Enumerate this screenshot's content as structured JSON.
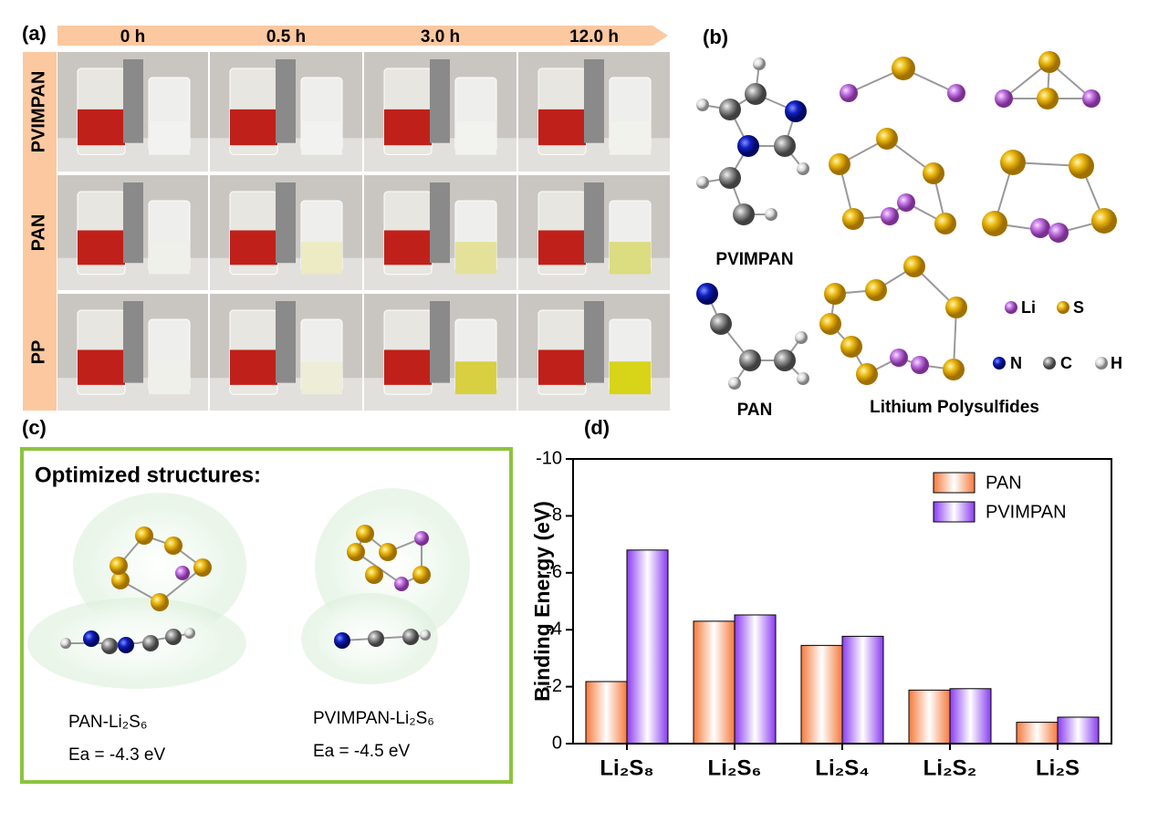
{
  "panel_a": {
    "label": "(a)",
    "times": [
      "0 h",
      "0.5 h",
      "3.0 h",
      "12.0 h"
    ],
    "rows": [
      "PVIMPAN",
      "PAN",
      "PP"
    ]
  },
  "panel_b": {
    "label": "(b)",
    "molecules": [
      "PVIMPAN",
      "PAN",
      "Lithium Polysulfides"
    ],
    "legend": [
      "Li",
      "S",
      "N",
      "C",
      "H"
    ]
  },
  "panel_c": {
    "label": "(c)",
    "title": "Optimized structures:",
    "structures": [
      {
        "name": "PAN-Li₂S₆",
        "energy": "Ea = -4.3 eV"
      },
      {
        "name": "PVIMPAN-Li₂S₆",
        "energy": "Ea = -4.5 eV"
      }
    ]
  },
  "chart_data": {
    "type": "bar",
    "label": "(d)",
    "y_label": "Binding Energy (eV)",
    "categories": [
      "Li₂S₈",
      "Li₂S₆",
      "Li₂S₄",
      "Li₂S₂",
      "Li₂S"
    ],
    "series": [
      {
        "name": "PAN",
        "color": "#f47a3c",
        "values": [
          -2.18,
          -4.3,
          -3.45,
          -1.88,
          -0.75
        ]
      },
      {
        "name": "PVIMPAN",
        "color": "#8a3cf0",
        "values": [
          -6.8,
          -4.52,
          -3.77,
          -1.93,
          -0.93
        ]
      }
    ],
    "ylim": [
      0,
      -10
    ],
    "yticks": [
      -10,
      -8,
      -6,
      -4,
      -2,
      0
    ],
    "legend": "upper right"
  }
}
